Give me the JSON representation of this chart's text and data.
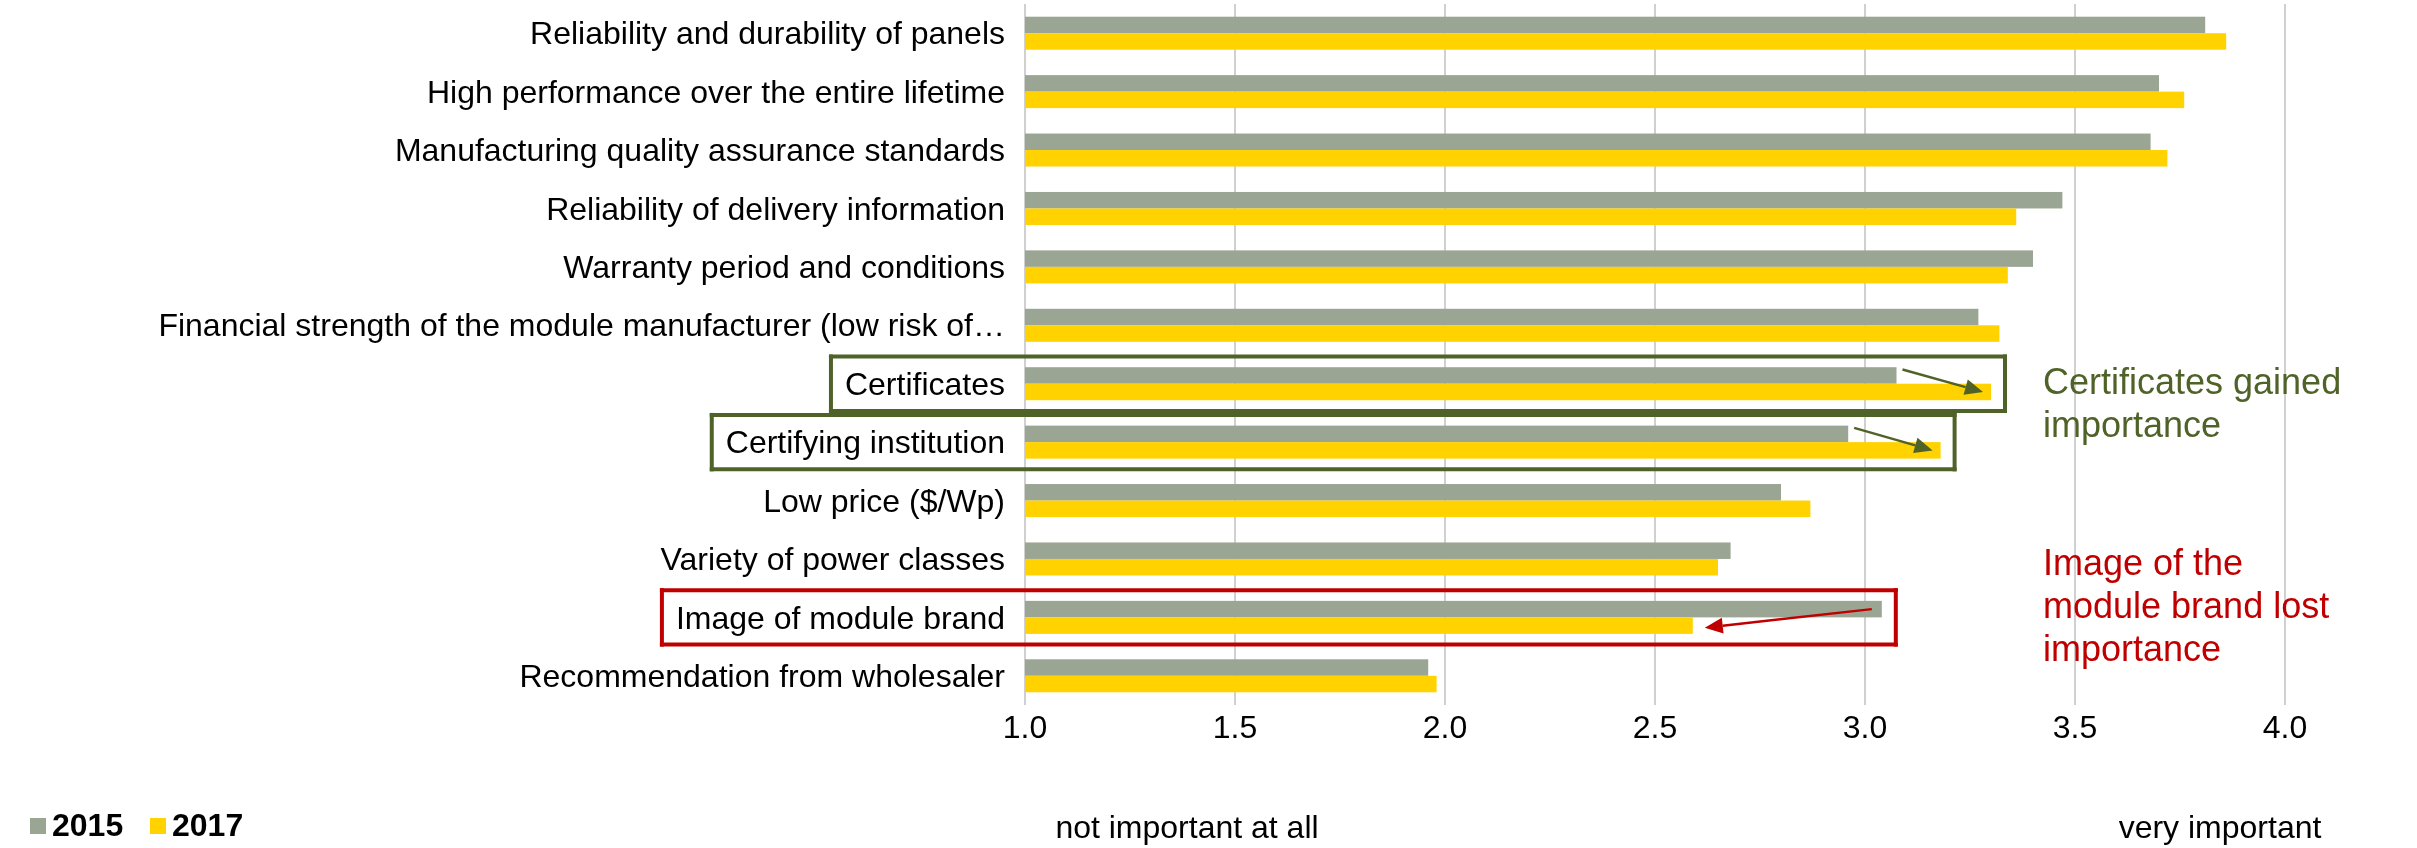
{
  "chart_data": {
    "type": "bar",
    "orientation": "horizontal",
    "categories": [
      "Reliability and durability of panels",
      "High performance over the entire lifetime",
      "Manufacturing quality assurance standards",
      "Reliability of delivery information",
      "Warranty period and conditions",
      "Financial strength of the module manufacturer (low risk of…",
      "Certificates",
      "Certifying institution",
      "Low price ($/Wp)",
      "Variety of power classes",
      "Image of module brand",
      "Recommendation from wholesaler"
    ],
    "series": [
      {
        "name": "2015",
        "color": "#9ba593",
        "values": [
          3.81,
          3.7,
          3.68,
          3.47,
          3.4,
          3.27,
          3.075,
          2.96,
          2.8,
          2.68,
          3.04,
          1.96
        ]
      },
      {
        "name": "2017",
        "color": "#ffd200",
        "values": [
          3.86,
          3.76,
          3.72,
          3.36,
          3.34,
          3.32,
          3.3,
          3.18,
          2.87,
          2.65,
          2.59,
          1.98
        ]
      }
    ],
    "xlim": [
      1,
      4
    ],
    "xticks": [
      {
        "value": 1,
        "label": "1.0"
      },
      {
        "value": 1.5,
        "label": "1.5"
      },
      {
        "value": 2,
        "label": "2.0"
      },
      {
        "value": 2.5,
        "label": "2.5"
      },
      {
        "value": 3,
        "label": "3.0"
      },
      {
        "value": 3.5,
        "label": "3.5"
      },
      {
        "value": 4,
        "label": "4.0"
      }
    ],
    "grid": "x",
    "legend": "bottom left",
    "annotations": [
      "Certificates gained importance",
      "Image of the module brand lost importance",
      "not important at all",
      "very important"
    ]
  }
}
